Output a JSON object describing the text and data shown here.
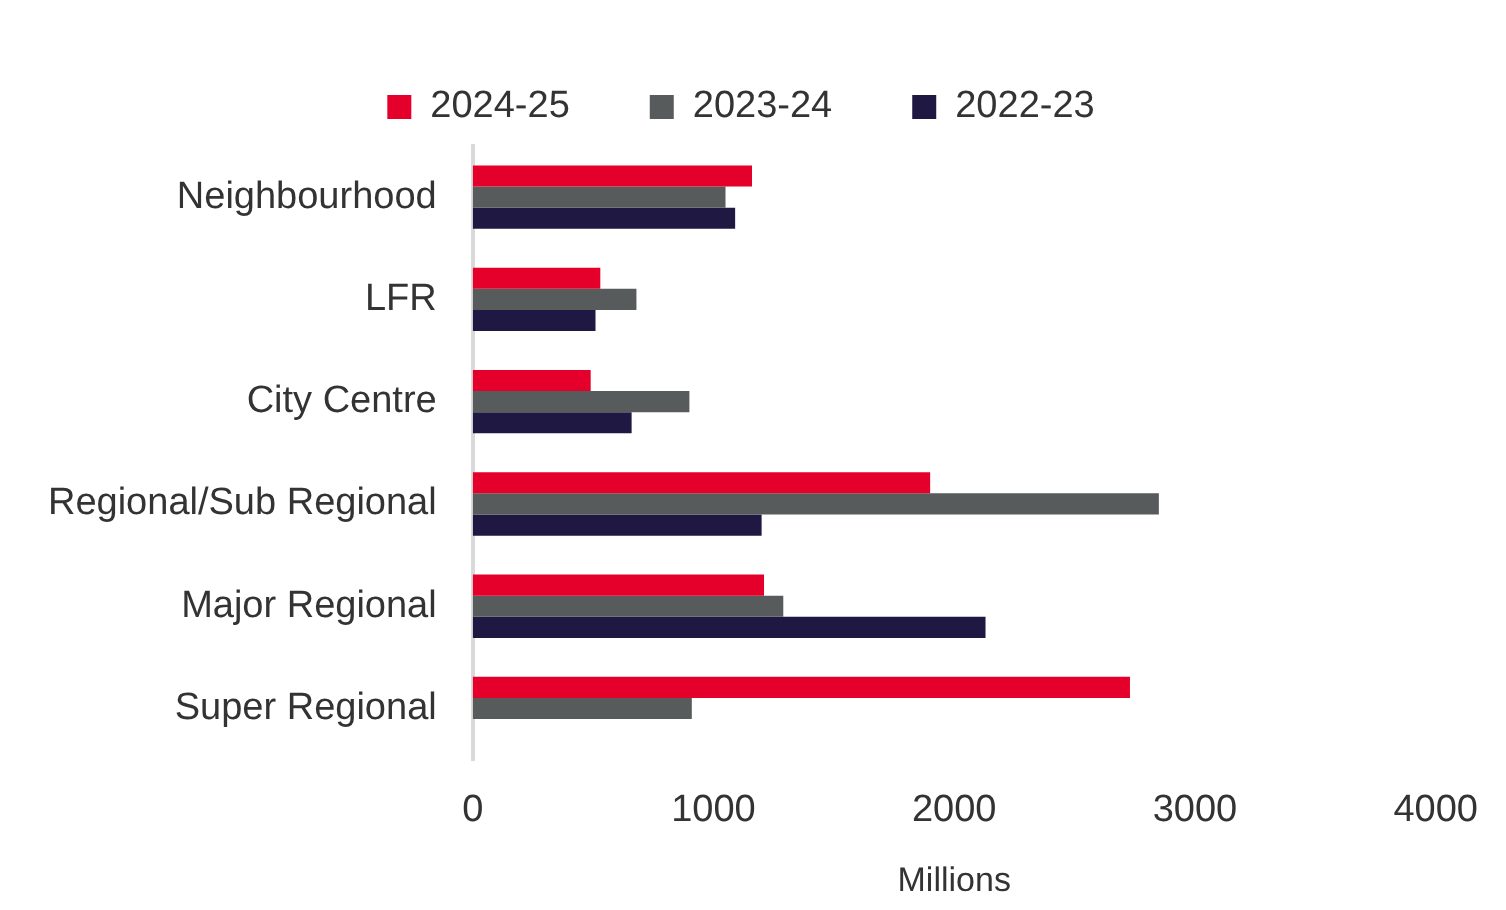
{
  "chart_data": {
    "type": "bar",
    "orientation": "horizontal",
    "xlabel": "Millions",
    "categories": [
      "Neighbourhood",
      "LFR",
      "City Centre",
      "Regional/Sub Regional",
      "Major Regional",
      "Super Regional"
    ],
    "series": [
      {
        "name": "2024-25",
        "color": "#e4002b",
        "values": [
          1160,
          530,
          490,
          1900,
          1210,
          2730
        ]
      },
      {
        "name": "2023-24",
        "color": "#575b5c",
        "values": [
          1050,
          680,
          900,
          2850,
          1290,
          910
        ]
      },
      {
        "name": "2022-23",
        "color": "#1e1842",
        "values": [
          1090,
          510,
          660,
          1200,
          2130,
          null
        ]
      }
    ],
    "xlim": [
      0,
      4000
    ],
    "xticks": [
      0,
      1000,
      2000,
      3000,
      4000
    ],
    "grid": false,
    "legend": "top"
  }
}
